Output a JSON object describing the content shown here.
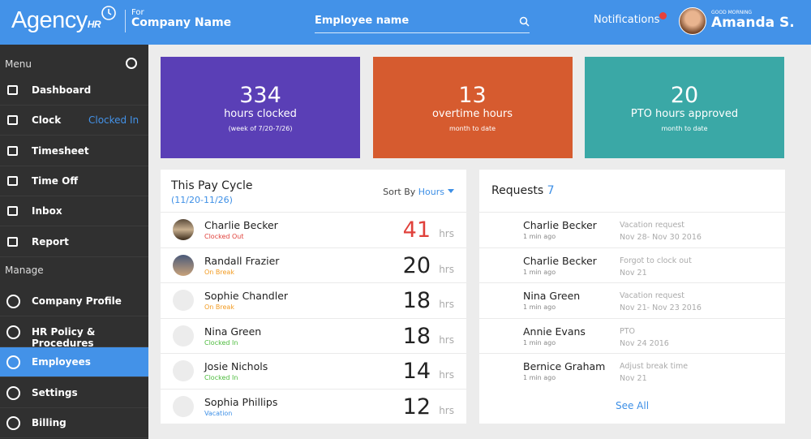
{
  "header": {
    "logo": "Agency",
    "logo_sub": "HR",
    "company_prefix": "For",
    "company": "Company Name",
    "search_placeholder": "Employee name",
    "notifications": "Notifications",
    "greeting": "GOOD MORNING",
    "user": "Amanda S."
  },
  "sidebar": {
    "menu_label": "Menu",
    "items": [
      {
        "label": "Dashboard"
      },
      {
        "label": "Clock",
        "status": "Clocked In"
      },
      {
        "label": "Timesheet"
      },
      {
        "label": "Time Off"
      },
      {
        "label": "Inbox"
      },
      {
        "label": "Report"
      }
    ],
    "manage_label": "Manage",
    "manage_items": [
      {
        "label": "Company Profile"
      },
      {
        "label": "HR Policy & Procedures"
      },
      {
        "label": "Employees",
        "active": true
      },
      {
        "label": "Settings"
      },
      {
        "label": "Billing"
      }
    ]
  },
  "stats": [
    {
      "value": 334,
      "label": "hours clocked",
      "sub": "(week of 7/20-7/26)",
      "color": "#5a3fb6"
    },
    {
      "value": 13,
      "label": "overtime hours",
      "sub": "month to date",
      "color": "#d65b2f"
    },
    {
      "value": 20,
      "label": "PTO hours approved",
      "sub": "month to date",
      "color": "#3aa8a6"
    }
  ],
  "pay_cycle": {
    "title": "This Pay Cycle",
    "range": "(11/20-11/26)",
    "sort_label": "Sort By",
    "sort_value": "Hours",
    "unit": "hrs",
    "rows": [
      {
        "name": "Charlie Becker",
        "status": "Clocked Out",
        "status_color": "#e0413b",
        "hours": 41,
        "hours_color": "#e0413b"
      },
      {
        "name": "Randall Frazier",
        "status": "On Break",
        "status_color": "#f29a1f",
        "hours": 20,
        "hours_color": "#222222"
      },
      {
        "name": "Sophie Chandler",
        "status": "On Break",
        "status_color": "#f29a1f",
        "hours": 18,
        "hours_color": "#222222"
      },
      {
        "name": "Nina Green",
        "status": "Clocked In",
        "status_color": "#4cbb3c",
        "hours": 18,
        "hours_color": "#222222"
      },
      {
        "name": "Josie Nichols",
        "status": "Clocked In",
        "status_color": "#4cbb3c",
        "hours": 14,
        "hours_color": "#222222"
      },
      {
        "name": "Sophia Phillips",
        "status": "Vacation",
        "status_color": "#3d8fe6",
        "hours": 12,
        "hours_color": "#222222"
      }
    ]
  },
  "requests": {
    "title": "Requests",
    "count": 7,
    "see_all": "See All",
    "rows": [
      {
        "name": "Charlie Becker",
        "time": "1 min ago",
        "type": "Vacation request",
        "date": "Nov 28- Nov 30 2016"
      },
      {
        "name": "Charlie Becker",
        "time": "1 min ago",
        "type": "Forgot to clock out",
        "date": "Nov 21"
      },
      {
        "name": "Nina Green",
        "time": "1 min ago",
        "type": "Vacation request",
        "date": "Nov 21- Nov 23 2016"
      },
      {
        "name": "Annie Evans",
        "time": "1 min ago",
        "type": "PTO",
        "date": "Nov 24 2016"
      },
      {
        "name": "Bernice Graham",
        "time": "1 min ago",
        "type": "Adjust break time",
        "date": "Nov 21"
      }
    ]
  }
}
